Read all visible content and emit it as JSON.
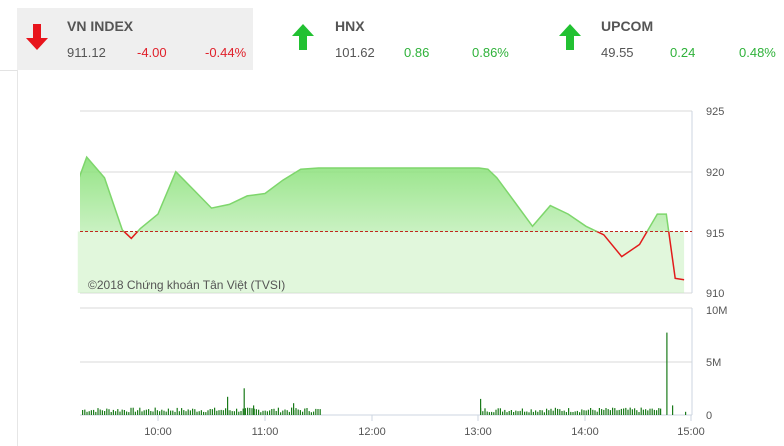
{
  "indices": [
    {
      "name": "VN INDEX",
      "value": "911.12",
      "change": "-4.00",
      "percent": "-0.44%",
      "direction": "down",
      "icon": "arrow-down-icon"
    },
    {
      "name": "HNX",
      "value": "101.62",
      "change": "0.86",
      "percent": "0.86%",
      "direction": "up",
      "icon": "arrow-up-icon"
    },
    {
      "name": "UPCOM",
      "value": "49.55",
      "change": "0.24",
      "percent": "0.48%",
      "direction": "up",
      "icon": "arrow-up-icon"
    }
  ],
  "colors": {
    "down": "#e0202a",
    "up": "#2fb23a",
    "area": "#8ee27e",
    "line_green": "#7ed66c",
    "line_red": "#e21b1b",
    "volume": "#1a7a1a",
    "ref_line": "#c0281e"
  },
  "chart_data": [
    {
      "type": "area",
      "title": "VN INDEX intraday",
      "watermark": "©2018 Chứng khoán Tân Việt (TVSI)",
      "ylabel": "",
      "ylim": [
        910,
        925
      ],
      "yticks": [
        "925",
        "920",
        "915",
        "910"
      ],
      "reference": 915.12,
      "x": [
        "09:15",
        "09:20",
        "09:30",
        "09:40",
        "09:45",
        "09:50",
        "10:00",
        "10:10",
        "10:20",
        "10:30",
        "10:40",
        "10:50",
        "11:00",
        "11:10",
        "11:20",
        "11:30",
        "13:00",
        "13:05",
        "13:10",
        "13:20",
        "13:30",
        "13:40",
        "13:50",
        "14:00",
        "14:10",
        "14:20",
        "14:30",
        "14:40",
        "14:45",
        "14:50",
        "14:55"
      ],
      "values": [
        919.2,
        921.2,
        919.5,
        915.2,
        914.5,
        915.3,
        916.5,
        920.0,
        918.5,
        917.0,
        917.3,
        918.0,
        918.2,
        919.3,
        920.2,
        920.3,
        920.3,
        920.2,
        919.5,
        917.5,
        915.5,
        917.2,
        916.5,
        915.5,
        914.8,
        913.0,
        914.0,
        916.5,
        916.5,
        911.2,
        911.1
      ]
    },
    {
      "type": "bar",
      "title": "Volume",
      "ylim": [
        0,
        10000000
      ],
      "yticks": [
        "10M",
        "5M",
        "0"
      ],
      "xticks": [
        "10:00",
        "11:00",
        "12:00",
        "13:00",
        "14:00",
        "15:00"
      ],
      "notable": [
        {
          "time": "10:48",
          "value": 2500000
        },
        {
          "time": "14:45",
          "value": 7700000
        }
      ]
    }
  ]
}
